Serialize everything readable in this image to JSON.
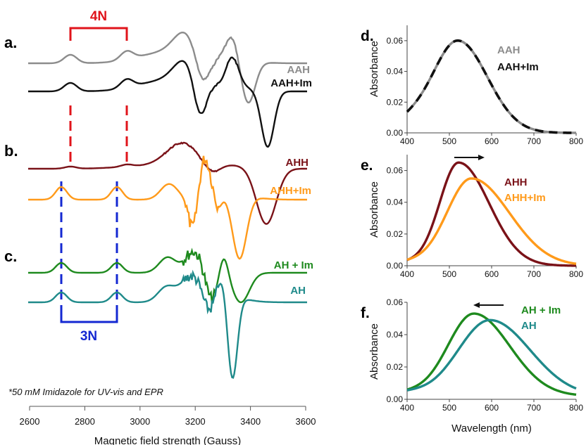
{
  "colors": {
    "gray": "#8c8c8c",
    "black": "#111111",
    "maroon": "#7a1218",
    "orange": "#ff9a1a",
    "green": "#1e8a1e",
    "teal": "#1f8a8a",
    "red": "#e0141b",
    "blue": "#1428d2"
  },
  "epr": {
    "panel_labels": {
      "a": "a.",
      "b": "b.",
      "c": "c."
    },
    "xlabel": "Magnetic field strength (Gauss)",
    "x_ticks": [
      "2600",
      "2800",
      "3000",
      "3200",
      "3400",
      "3600"
    ],
    "xlim": [
      2600,
      3600
    ],
    "footnote": "*50 mM Imidazole for UV-vis and EPR",
    "bracket_4n": "4N",
    "bracket_3n": "3N",
    "traces": [
      {
        "name": "AAH",
        "color": "gray"
      },
      {
        "name": "AAH+Im",
        "color": "black"
      },
      {
        "name": "AHH",
        "color": "maroon"
      },
      {
        "name": "AHH+Im",
        "color": "orange"
      },
      {
        "name": "AH + Im",
        "color": "green"
      },
      {
        "name": "AH",
        "color": "teal"
      }
    ]
  },
  "chart_data": [
    {
      "panel": "d.",
      "type": "line",
      "xlabel": "",
      "ylabel": "Absorbance",
      "xlim": [
        400,
        800
      ],
      "ylim": [
        0,
        0.07
      ],
      "x_ticks": [
        "400",
        "500",
        "600",
        "700",
        "800"
      ],
      "y_ticks": [
        "0.00",
        "0.02",
        "0.04",
        "0.06"
      ],
      "series": [
        {
          "name": "AAH",
          "color": "gray",
          "style": "solid",
          "peak_x": 520,
          "peak_y": 0.06,
          "width_left": 60,
          "width_right": 70,
          "baseline": 0.0
        },
        {
          "name": "AAH+Im",
          "color": "black",
          "style": "dashed",
          "peak_x": 520,
          "peak_y": 0.06,
          "width_left": 60,
          "width_right": 70,
          "baseline": 0.0
        }
      ]
    },
    {
      "panel": "e.",
      "type": "line",
      "xlabel": "",
      "ylabel": "Absorbance",
      "xlim": [
        400,
        800
      ],
      "ylim": [
        0,
        0.07
      ],
      "x_ticks": [
        "400",
        "500",
        "600",
        "700",
        "800"
      ],
      "y_ticks": [
        "0.00",
        "0.02",
        "0.04",
        "0.06"
      ],
      "arrow": "right",
      "series": [
        {
          "name": "AHH",
          "color": "maroon",
          "style": "solid",
          "peak_x": 522,
          "peak_y": 0.065,
          "width_left": 45,
          "width_right": 72,
          "baseline": 0.0
        },
        {
          "name": "AHH+Im",
          "color": "orange",
          "style": "solid",
          "peak_x": 552,
          "peak_y": 0.055,
          "width_left": 58,
          "width_right": 90,
          "baseline": 0.0
        }
      ]
    },
    {
      "panel": "f.",
      "type": "line",
      "xlabel": "Wavelength (nm)",
      "ylabel": "Absorbance",
      "xlim": [
        400,
        800
      ],
      "ylim": [
        0,
        0.06
      ],
      "x_ticks": [
        "400",
        "500",
        "600",
        "700",
        "800"
      ],
      "y_ticks": [
        "0.00",
        "0.02",
        "0.04",
        "0.06"
      ],
      "arrow": "left",
      "series": [
        {
          "name": "AH + Im",
          "color": "green",
          "style": "solid",
          "peak_x": 558,
          "peak_y": 0.053,
          "width_left": 62,
          "width_right": 85,
          "baseline": 0.002
        },
        {
          "name": "AH",
          "color": "teal",
          "style": "solid",
          "peak_x": 596,
          "peak_y": 0.049,
          "width_left": 75,
          "width_right": 95,
          "baseline": 0.002
        }
      ]
    }
  ]
}
